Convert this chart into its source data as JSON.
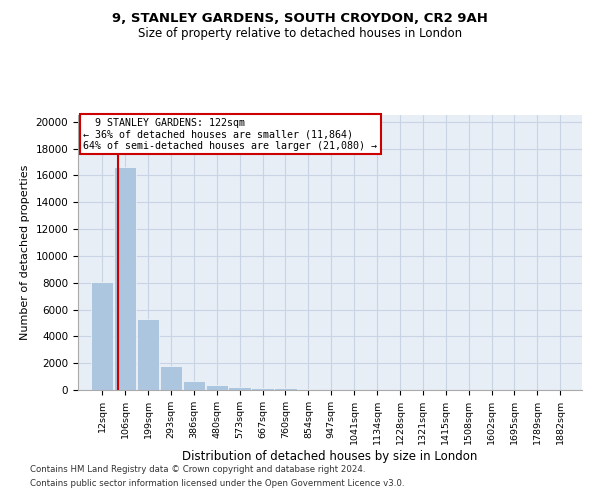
{
  "title1": "9, STANLEY GARDENS, SOUTH CROYDON, CR2 9AH",
  "title2": "Size of property relative to detached houses in London",
  "xlabel": "Distribution of detached houses by size in London",
  "ylabel": "Number of detached properties",
  "property_label": "9 STANLEY GARDENS: 122sqm",
  "pct_smaller": "36% of detached houses are smaller (11,864)",
  "pct_larger": "64% of semi-detached houses are larger (21,080)",
  "bar_color": "#adc6e0",
  "vline_color": "#cc0000",
  "annotation_box_color": "#cc0000",
  "grid_color": "#c8d4e4",
  "background_color": "#e8eef6",
  "footnote1": "Contains HM Land Registry data © Crown copyright and database right 2024.",
  "footnote2": "Contains public sector information licensed under the Open Government Licence v3.0.",
  "bin_labels": [
    "12sqm",
    "106sqm",
    "199sqm",
    "293sqm",
    "386sqm",
    "480sqm",
    "573sqm",
    "667sqm",
    "760sqm",
    "854sqm",
    "947sqm",
    "1041sqm",
    "1134sqm",
    "1228sqm",
    "1321sqm",
    "1415sqm",
    "1508sqm",
    "1602sqm",
    "1695sqm",
    "1789sqm",
    "1882sqm"
  ],
  "bin_edges": [
    12,
    106,
    199,
    293,
    386,
    480,
    573,
    667,
    760,
    854,
    947,
    1041,
    1134,
    1228,
    1321,
    1415,
    1508,
    1602,
    1695,
    1789,
    1882
  ],
  "bar_heights": [
    8050,
    16600,
    5300,
    1820,
    660,
    340,
    210,
    170,
    150,
    100,
    0,
    0,
    0,
    0,
    0,
    0,
    0,
    0,
    0,
    0
  ],
  "ylim": [
    0,
    20500
  ],
  "yticks": [
    0,
    2000,
    4000,
    6000,
    8000,
    10000,
    12000,
    14000,
    16000,
    18000,
    20000
  ]
}
